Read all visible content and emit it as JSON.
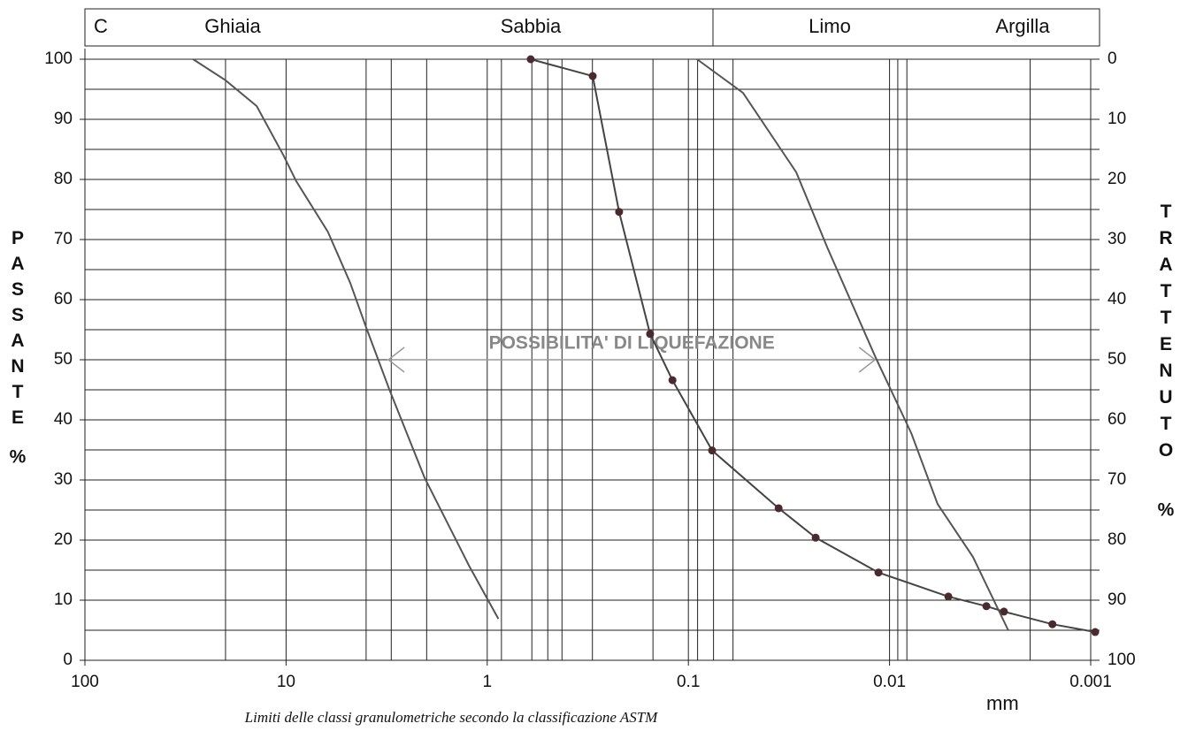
{
  "chart_data": {
    "type": "line",
    "header": [
      "C",
      "Ghiaia",
      "Sabbia",
      "Limo",
      "Argilla"
    ],
    "ylabel": "PASSANTE",
    "yunit": "%",
    "y2label": "TRATTENUTO",
    "y2unit": "%",
    "xlabel": "mm",
    "caption": "Limiti delle classi granulometriche secondo la classificazione ASTM",
    "log_x": true,
    "xlim": [
      100,
      0.001
    ],
    "xticks": [
      100,
      10,
      1,
      0.1,
      0.01,
      0.001
    ],
    "xgrid": [
      20,
      4,
      3,
      2,
      0.85,
      0.6,
      0.5,
      0.425,
      0.3,
      0.15,
      0.09,
      0.075,
      0.06,
      0.0091,
      0.0082,
      0.002
    ],
    "ylim": [
      0,
      100
    ],
    "yticks": [
      0,
      10,
      20,
      30,
      40,
      50,
      60,
      70,
      80,
      90,
      100
    ],
    "ygrid": [
      5,
      15,
      25,
      35,
      45,
      55,
      65,
      75,
      85,
      95
    ],
    "y2lim": [
      100,
      0
    ],
    "y2ticks": [
      0,
      10,
      20,
      30,
      40,
      50,
      60,
      70,
      80,
      90,
      100
    ],
    "grid": true,
    "annotation": {
      "text": "POSSIBILITA' DI LIQUEFAZIONE",
      "x": [
        3.1,
        0.0118
      ],
      "y": 50
    },
    "series": [
      {
        "color": "#555555",
        "markers": false,
        "x": [
          29,
          20,
          14,
          10.3,
          8.9,
          6.2,
          4.8,
          4.0,
          3.07,
          2.05,
          1.23,
          0.88
        ],
        "values": [
          100,
          96.5,
          92.2,
          84,
          79.7,
          71.3,
          62.8,
          55.4,
          45.1,
          30.4,
          15.7,
          6.9
        ]
      },
      {
        "color": "#444444",
        "markers": true,
        "marker_color": "#4a2a2e",
        "x": [
          0.608,
          0.299,
          0.221,
          0.155,
          0.12,
          0.0762,
          0.0356,
          0.0233,
          0.01135,
          0.0051,
          0.0033,
          0.0027,
          0.00155,
          0.00095
        ],
        "values": [
          100,
          97.2,
          74.6,
          54.3,
          46.6,
          34.9,
          25.3,
          20.4,
          14.6,
          10.6,
          9.0,
          8.1,
          6.0,
          4.7
        ]
      },
      {
        "color": "#555555",
        "markers": false,
        "x": [
          0.0906,
          0.0535,
          0.0291,
          0.0204,
          0.0117,
          0.0078,
          0.00577,
          0.00385,
          0.00257
        ],
        "values": [
          100,
          94.4,
          81.2,
          68.7,
          50.3,
          37.8,
          26.0,
          17.2,
          5.0
        ]
      }
    ]
  }
}
